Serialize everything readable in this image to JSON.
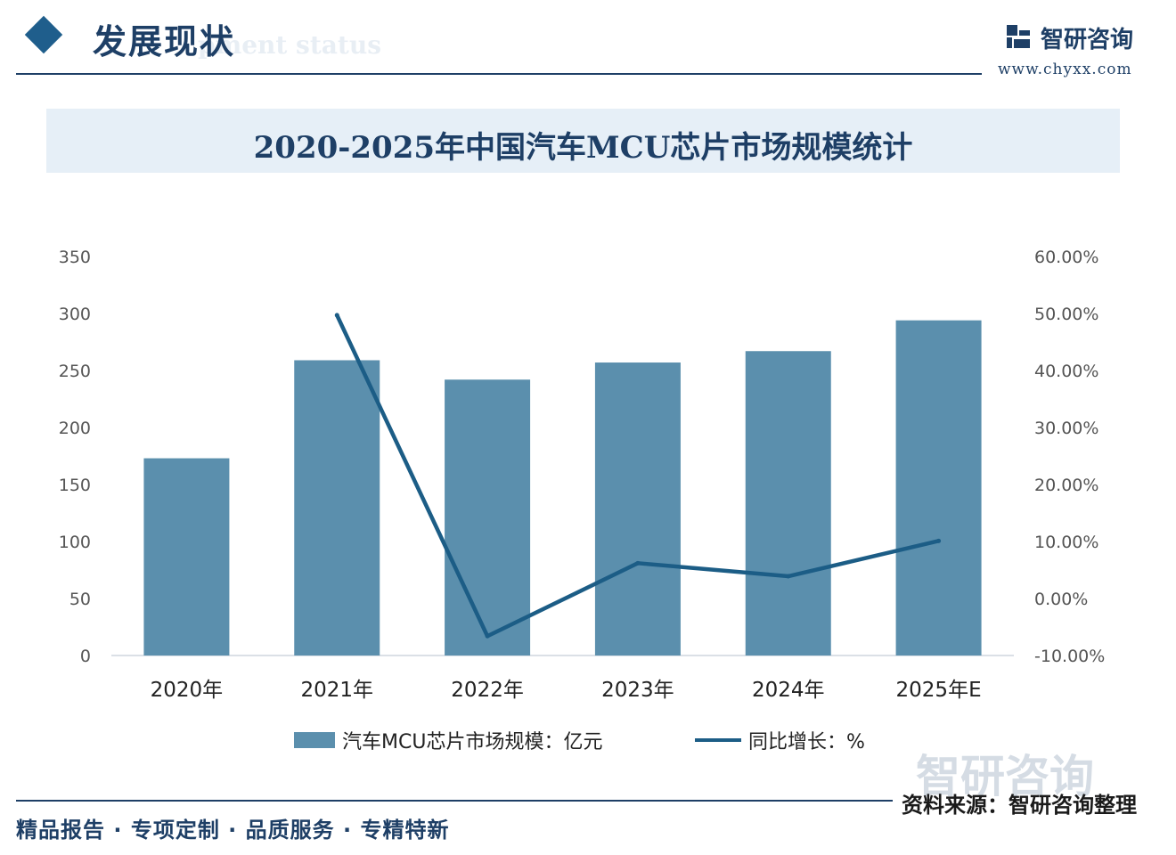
{
  "header": {
    "title": "发展现状",
    "subtitle": "pment status",
    "brand_name": "智研咨询",
    "brand_url": "www.chyxx.com"
  },
  "chart_title": "2020-2025年中国汽车MCU芯片市场规模统计",
  "chart_data": {
    "type": "bar",
    "title": "2020-2025年中国汽车MCU芯片市场规模统计",
    "categories": [
      "2020年",
      "2021年",
      "2022年",
      "2023年",
      "2024年",
      "2025年E"
    ],
    "series": [
      {
        "name": "汽车MCU芯片市场规模：亿元",
        "type": "bar",
        "axis": "left",
        "values": [
          173,
          259,
          242,
          257,
          267,
          294
        ]
      },
      {
        "name": "同比增长：%",
        "type": "line",
        "axis": "right",
        "values": [
          null,
          49.7,
          -6.6,
          6.2,
          3.9,
          10.1
        ]
      }
    ],
    "y_left": {
      "min": 0,
      "max": 350,
      "ticks": [
        "0",
        "50",
        "100",
        "150",
        "200",
        "250",
        "300",
        "350"
      ]
    },
    "y_right": {
      "min": -10,
      "max": 60,
      "ticks": [
        "-10.00%",
        "0.00%",
        "10.00%",
        "20.00%",
        "30.00%",
        "40.00%",
        "50.00%",
        "60.00%"
      ]
    },
    "legend_position": "bottom",
    "grid": false
  },
  "legend": {
    "bar_label": "汽车MCU芯片市场规模：亿元",
    "line_label": "同比增长：%"
  },
  "watermark": "智研咨询",
  "source": "资料来源：智研咨询整理",
  "footer": "精品报告 · 专项定制 · 品质服务 · 专精特新",
  "colors": {
    "bar": "#5b8fad",
    "line": "#1c5d86",
    "navy": "#1e3f66",
    "title_band": "#e6eff7"
  }
}
